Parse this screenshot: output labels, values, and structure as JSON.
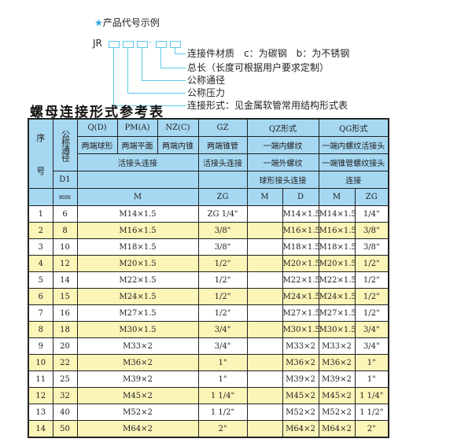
{
  "example": {
    "title": "产品代号示例",
    "prefix": "JR",
    "dash": "-",
    "labels": [
      "连接件材质　c：为碳钢　b：为不锈钢",
      "总长（长度可根据用户要求定制）",
      "公称通径",
      "公称压力",
      "连接形式：见金属软管常用结构形式表"
    ]
  },
  "table_title": "螺母连接形式参考表",
  "header": {
    "seq": "序\n\n\n号",
    "dn": "公称通径",
    "d1": "D1",
    "mm": "mm",
    "qd": "Q(D)",
    "pm": "PM(A)",
    "nz": "NZ(C)",
    "gz": "GZ",
    "qz": "QZ形式",
    "qg": "QG形式",
    "qd2": "两端球形",
    "pm2": "两端平面",
    "nz2": "两端内锥",
    "gz2": "两端锥管",
    "qz2": "一端内螺纹",
    "qg2": "一端内螺纹活接头",
    "huo": "活接头连接",
    "gz3": "活接头连接",
    "qz3": "一端外螺纹",
    "qg3": "一端锥管螺纹接头",
    "qz4": "球形接头连接",
    "qg4": "连接",
    "m": "M",
    "zg": "ZG",
    "qzm": "M",
    "qzd": "D",
    "qgm": "M",
    "qgzg": "ZG"
  },
  "columns": [
    "seq",
    "dn",
    "m",
    "zg",
    "qz_m",
    "qz_d",
    "qg_m",
    "qg_zg"
  ],
  "rows": [
    [
      "1",
      "6",
      "M14×1.5",
      "ZG 1/4\"",
      "",
      "M14×1.5",
      "M14×1.5",
      "1/4\""
    ],
    [
      "2",
      "8",
      "M16×1.5",
      "3/8\"",
      "",
      "M16×1.5",
      "M16×1.5",
      "3/8\""
    ],
    [
      "3",
      "10",
      "M18×1.5",
      "3/8\"",
      "",
      "M18×1.5",
      "M18×1.5",
      "3/8\""
    ],
    [
      "4",
      "12",
      "M20×1.5",
      "1/2\"",
      "",
      "M20×1.5",
      "M20×1.5",
      "1/2\""
    ],
    [
      "5",
      "14",
      "M22×1.5",
      "1/2\"",
      "",
      "M22×1.5",
      "M22×1.5",
      "1/2\""
    ],
    [
      "6",
      "15",
      "M24×1.5",
      "1/2\"",
      "",
      "M24×1.5",
      "M24×1.5",
      "1/2\""
    ],
    [
      "7",
      "16",
      "M27×1.5",
      "1/2\"",
      "",
      "M27×1.5",
      "M27×1.5",
      "1/2\""
    ],
    [
      "8",
      "18",
      "M30×1.5",
      "3/4\"",
      "",
      "M30×1.5",
      "M30×1.5",
      "3/4\""
    ],
    [
      "9",
      "20",
      "M33×2",
      "3/4\"",
      "",
      "M33×2",
      "M33×2",
      "3/4\""
    ],
    [
      "10",
      "22",
      "M36×2",
      "1\"",
      "",
      "M36×2",
      "M36×2",
      "1\""
    ],
    [
      "11",
      "25",
      "M39×2",
      "1\"",
      "",
      "M39×2",
      "M39×2",
      "1\""
    ],
    [
      "12",
      "32",
      "M45×2",
      "1 1/4\"",
      "",
      "M45×2",
      "M45×2",
      "1 1/4\""
    ],
    [
      "13",
      "40",
      "M52×2",
      "1 1/2\"",
      "",
      "M52×2",
      "M52×2",
      "1 1/2\""
    ],
    [
      "14",
      "50",
      "M64×2",
      "2\"",
      "",
      "M64×2",
      "M64×2",
      "2\""
    ]
  ],
  "colors": {
    "header": "#a6d8f2",
    "stripe": "#fcf5b8",
    "line": "#5bc8e8"
  }
}
